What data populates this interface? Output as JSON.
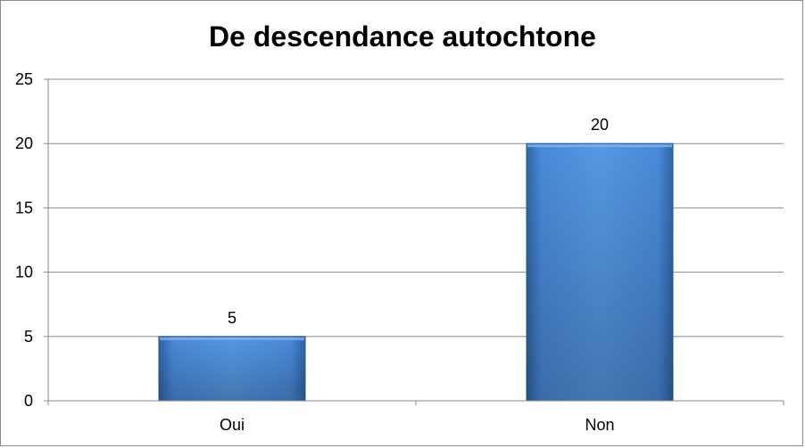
{
  "chart_data": {
    "type": "bar",
    "title": "De descendance autochtone",
    "categories": [
      "Oui",
      "Non"
    ],
    "values": [
      5,
      20
    ],
    "data_labels": [
      "5",
      "20"
    ],
    "y_ticks": [
      "0",
      "5",
      "10",
      "15",
      "20",
      "25"
    ],
    "ylim": [
      0,
      25
    ],
    "xlabel": "",
    "ylabel": "",
    "grid": true,
    "legend": "none",
    "colors": {
      "bar_light": "#5b9be0",
      "bar_mid": "#3f7fcf",
      "bar_dark": "#2c5f9e",
      "gridline": "#8a8a8a",
      "axis": "#8a8a8a"
    }
  }
}
